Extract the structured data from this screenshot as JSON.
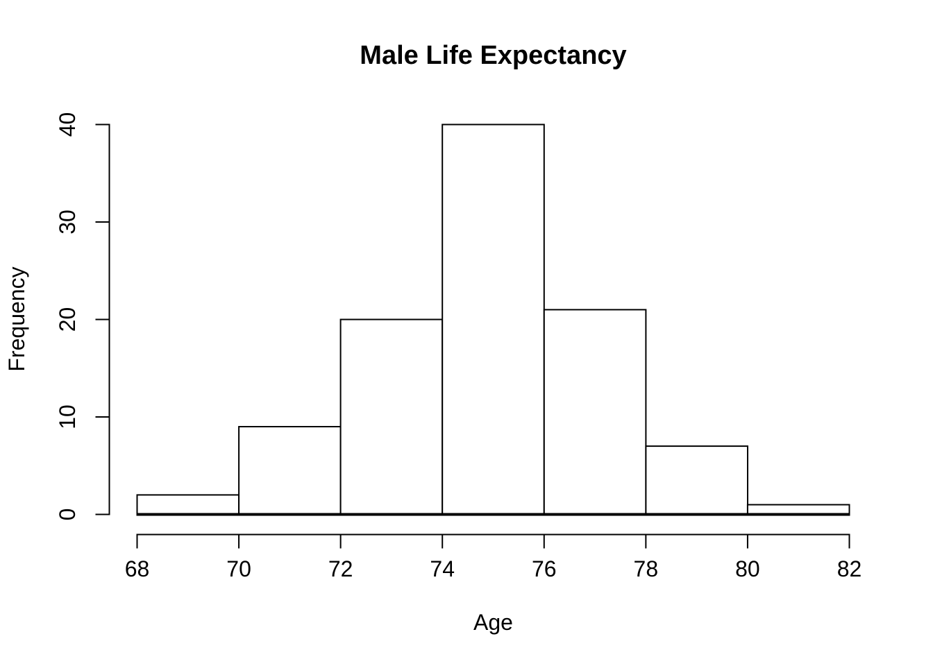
{
  "figure": {
    "background": "#ffffff",
    "stroke_color": "#000000"
  },
  "chart_data": {
    "type": "bar",
    "subtype": "histogram",
    "title": "Male Life Expectancy",
    "xlabel": "Age",
    "ylabel": "Frequency",
    "bin_edges": [
      68,
      70,
      72,
      74,
      76,
      78,
      80,
      82
    ],
    "counts": [
      2,
      9,
      20,
      40,
      21,
      7,
      1
    ],
    "x_ticks": [
      68,
      70,
      72,
      74,
      76,
      78,
      80,
      82
    ],
    "y_ticks": [
      0,
      10,
      20,
      30,
      40
    ],
    "xlim": [
      68,
      82
    ],
    "ylim": [
      0,
      40
    ],
    "bar_fill": "#ffffff",
    "bar_border": "#000000",
    "grid": false,
    "legend_position": "none"
  }
}
